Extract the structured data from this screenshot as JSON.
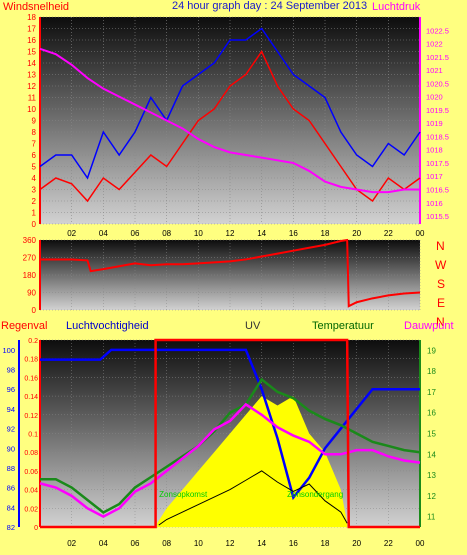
{
  "header": {
    "title": "24 hour graph day : 24 September 2013",
    "left_label": "Windsnelheid",
    "right_label": "Luchtdruk"
  },
  "bottom_header": {
    "regen": "Regenval",
    "vocht": "Luchtvochtigheid",
    "uv": "UV",
    "temp": "Temperatuur",
    "dauw": "Dauwpunt"
  },
  "compass": [
    "N",
    "W",
    "S",
    "E",
    "N"
  ],
  "annotations": {
    "sunrise": "Zonsopkomst",
    "sunset": "Zonsondergang"
  },
  "colors": {
    "background": "#ffff80",
    "wind": "#ff0000",
    "gust": "#0000ff",
    "pressure": "#ff00ff",
    "direction": "#ff0000",
    "humidity": "#0000ff",
    "temperature": "#1a8a1a",
    "dewpoint": "#ff00ff",
    "uv": "#ffff00",
    "solar": "#000000",
    "rain": "#ff0000",
    "annotation": "#00cc00"
  },
  "chart_data": [
    {
      "type": "line",
      "x_ticks": [
        "02",
        "04",
        "06",
        "08",
        "10",
        "12",
        "14",
        "16",
        "18",
        "20",
        "22",
        "00"
      ],
      "xlim": [
        0,
        24
      ],
      "left_axis": {
        "label": "Windsnelheid",
        "ylim": [
          0,
          18
        ],
        "ticks": [
          0,
          1,
          2,
          3,
          4,
          5,
          6,
          7,
          8,
          9,
          10,
          11,
          12,
          13,
          14,
          15,
          16,
          17,
          18
        ]
      },
      "right_axis": {
        "label": "Luchtdruk",
        "ylim": [
          1015.2,
          1023
        ],
        "ticks": [
          "1015.5",
          "1016",
          "1016.5",
          "1017",
          "1017.5",
          "1018",
          "1018.5",
          "1019",
          "1019.5",
          "1020",
          "1020.5",
          "1021",
          "1021.5",
          "1022",
          "1022.5"
        ]
      },
      "series": [
        {
          "name": "Windsnelheid",
          "axis": "left",
          "x": [
            0,
            1,
            2,
            3,
            4,
            5,
            6,
            7,
            8,
            9,
            10,
            11,
            12,
            13,
            14,
            15,
            16,
            17,
            18,
            19,
            20,
            21,
            22,
            23,
            24
          ],
          "values": [
            3,
            4,
            3.5,
            2,
            4,
            3,
            4.5,
            6,
            5,
            7,
            9,
            10,
            12,
            13,
            15,
            12,
            10,
            9,
            7,
            5,
            3,
            2,
            4,
            3,
            4
          ]
        },
        {
          "name": "Windstoten",
          "axis": "left",
          "x": [
            0,
            1,
            2,
            3,
            4,
            5,
            6,
            7,
            8,
            9,
            10,
            11,
            12,
            13,
            14,
            15,
            16,
            17,
            18,
            19,
            20,
            21,
            22,
            23,
            24
          ],
          "values": [
            5,
            6,
            6,
            4,
            8,
            6,
            8,
            11,
            9,
            12,
            13,
            14,
            16,
            16,
            17,
            15,
            13,
            12,
            11,
            8,
            6,
            5,
            7,
            6,
            8
          ]
        },
        {
          "name": "Luchtdruk",
          "axis": "right",
          "x": [
            0,
            1,
            2,
            3,
            4,
            5,
            6,
            7,
            8,
            9,
            10,
            11,
            12,
            13,
            14,
            15,
            16,
            17,
            18,
            19,
            20,
            21,
            22,
            23,
            24
          ],
          "values": [
            1021.8,
            1021.6,
            1021.2,
            1020.7,
            1020.3,
            1020.0,
            1019.7,
            1019.4,
            1019.1,
            1018.8,
            1018.4,
            1018.1,
            1017.9,
            1017.8,
            1017.7,
            1017.6,
            1017.5,
            1017.2,
            1016.8,
            1016.6,
            1016.5,
            1016.4,
            1016.4,
            1016.5,
            1016.5
          ]
        }
      ]
    },
    {
      "type": "line",
      "xlim": [
        0,
        24
      ],
      "ylim": [
        0,
        360
      ],
      "y_ticks": [
        "0",
        "90",
        "180",
        "270",
        "360"
      ],
      "series": [
        {
          "name": "Windrichting",
          "x": [
            0,
            1,
            2,
            3,
            3.2,
            4,
            5,
            6,
            7,
            8,
            9,
            10,
            11,
            12,
            13,
            14,
            15,
            16,
            17,
            18,
            19,
            19.4,
            19.5,
            20,
            21,
            22,
            23,
            24
          ],
          "values": [
            260,
            260,
            260,
            255,
            200,
            210,
            225,
            240,
            230,
            235,
            235,
            240,
            245,
            250,
            260,
            275,
            290,
            305,
            320,
            335,
            355,
            360,
            20,
            40,
            60,
            75,
            85,
            90
          ]
        }
      ]
    },
    {
      "type": "line",
      "x_ticks": [
        "02",
        "04",
        "06",
        "08",
        "10",
        "12",
        "14",
        "16",
        "18",
        "20",
        "22",
        "00"
      ],
      "xlim": [
        0,
        24
      ],
      "regen_axis": {
        "ylim": [
          0,
          0.2
        ],
        "ticks": [
          "0",
          "0.02",
          "0.04",
          "0.06",
          "0.08",
          "0.1",
          "0.12",
          "0.14",
          "0.16",
          "0.18",
          "0.2"
        ]
      },
      "vocht_axis": {
        "ylim": [
          82,
          101
        ],
        "ticks": [
          "82",
          "84",
          "86",
          "88",
          "90",
          "92",
          "94",
          "96",
          "98",
          "100"
        ]
      },
      "temp_axis": {
        "ylim": [
          10.5,
          19.5
        ],
        "ticks": [
          "11",
          "12",
          "13",
          "14",
          "15",
          "16",
          "17",
          "18",
          "19"
        ]
      },
      "uv_ylim": [
        0,
        10
      ],
      "series": [
        {
          "name": "Luchtvochtigheid",
          "axis": "vocht",
          "x": [
            0,
            1,
            2,
            3,
            3.8,
            4.5,
            5,
            6,
            7,
            8,
            9,
            10,
            11,
            12,
            13,
            14,
            15,
            16,
            17,
            18,
            19,
            20,
            21,
            22,
            23,
            24
          ],
          "values": [
            99,
            99,
            99,
            99,
            99,
            100,
            100,
            100,
            100,
            100,
            100,
            100,
            100,
            100,
            100,
            96,
            91,
            85,
            87,
            90,
            92,
            94,
            96,
            96,
            96,
            96
          ]
        },
        {
          "name": "Temperatuur",
          "axis": "temp",
          "x": [
            0,
            1,
            2,
            3,
            4,
            5,
            6,
            7,
            8,
            9,
            10,
            11,
            12,
            13,
            14,
            15,
            16,
            17,
            18,
            19,
            20,
            21,
            22,
            23,
            24
          ],
          "values": [
            12.8,
            12.8,
            12.4,
            11.8,
            11.2,
            11.6,
            12.4,
            12.9,
            13.4,
            13.9,
            14.4,
            15.1,
            16.0,
            16.4,
            17.6,
            17.0,
            16.7,
            16.1,
            15.7,
            15.4,
            15.0,
            14.6,
            14.4,
            14.2,
            14.1
          ]
        },
        {
          "name": "Dauwpunt",
          "axis": "temp",
          "x": [
            0,
            1,
            2,
            3,
            4,
            5,
            6,
            7,
            8,
            9,
            10,
            11,
            12,
            13,
            14,
            15,
            16,
            17,
            18,
            19,
            20,
            21,
            22,
            23,
            24
          ],
          "values": [
            12.6,
            12.4,
            12.0,
            11.4,
            11.0,
            11.4,
            12.2,
            12.6,
            13.2,
            13.8,
            14.4,
            15.2,
            15.6,
            16.4,
            15.9,
            15.3,
            14.9,
            14.6,
            14.0,
            14.0,
            14.2,
            14.2,
            13.9,
            13.7,
            13.6
          ]
        },
        {
          "name": "UV",
          "axis": "uv",
          "x": [
            7.4,
            8,
            9,
            10,
            11,
            12,
            13,
            14,
            15,
            16,
            17,
            18,
            19,
            19.4
          ],
          "values": [
            0.2,
            1,
            2,
            3,
            4,
            5,
            6,
            7,
            6.5,
            7,
            5,
            4,
            2,
            0.2
          ]
        },
        {
          "name": "Zonnestraling",
          "axis": "uv",
          "x": [
            7.5,
            8,
            9,
            10,
            11,
            12,
            13,
            14,
            15,
            16,
            17,
            18,
            19,
            19.4
          ],
          "values": [
            0.1,
            0.4,
            0.8,
            1.2,
            1.6,
            2.0,
            2.5,
            3,
            2.4,
            1.9,
            2.3,
            1.4,
            0.8,
            0.2
          ]
        },
        {
          "name": "Regenval",
          "axis": "regen",
          "x": [
            0,
            7.3,
            7.3,
            19.3,
            19.4,
            19.5,
            24
          ],
          "values": [
            0,
            0,
            0.2,
            0.2,
            0.2,
            0,
            0
          ]
        }
      ]
    }
  ]
}
